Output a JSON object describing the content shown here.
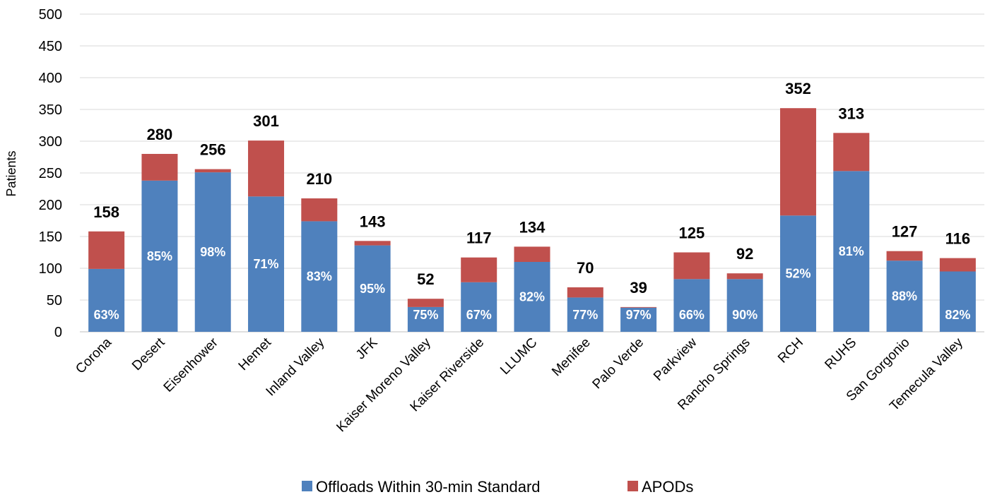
{
  "chart_data": {
    "type": "bar",
    "stacked": true,
    "categories": [
      "Corona",
      "Desert",
      "Eisenhower",
      "Hemet",
      "Inland Valley",
      "JFK",
      "Kaiser Moreno Valley",
      "Kaiser Riverside",
      "LLUMC",
      "Menifee",
      "Palo Verde",
      "Parkview",
      "Rancho Springs",
      "RCH",
      "RUHS",
      "San Gorgonio",
      "Temecula Valley"
    ],
    "series": [
      {
        "name": "Offloads Within 30-min Standard",
        "color": "#4f81bd",
        "values": [
          99,
          238,
          251,
          213,
          174,
          136,
          39,
          78,
          110,
          54,
          38,
          83,
          83,
          183,
          253,
          112,
          95
        ]
      },
      {
        "name": "APODs",
        "color": "#c0504d",
        "values": [
          59,
          42,
          5,
          88,
          36,
          7,
          13,
          39,
          24,
          16,
          1,
          42,
          9,
          169,
          60,
          15,
          21
        ]
      }
    ],
    "totals": [
      "158",
      "280",
      "256",
      "301",
      "210",
      "143",
      "52",
      "117",
      "134",
      "70",
      "39",
      "125",
      "92",
      "352",
      "313",
      "127",
      "116"
    ],
    "percent_labels": [
      "63%",
      "85%",
      "98%",
      "71%",
      "83%",
      "95%",
      "75%",
      "67%",
      "82%",
      "77%",
      "97%",
      "66%",
      "90%",
      "52%",
      "81%",
      "88%",
      "82%"
    ],
    "ylabel": "Patients",
    "xlabel": "",
    "ylim": [
      0,
      500
    ],
    "yticks": [
      "0",
      "50",
      "100",
      "150",
      "200",
      "250",
      "300",
      "350",
      "400",
      "450",
      "500"
    ],
    "grid": true,
    "legend_position": "bottom"
  }
}
